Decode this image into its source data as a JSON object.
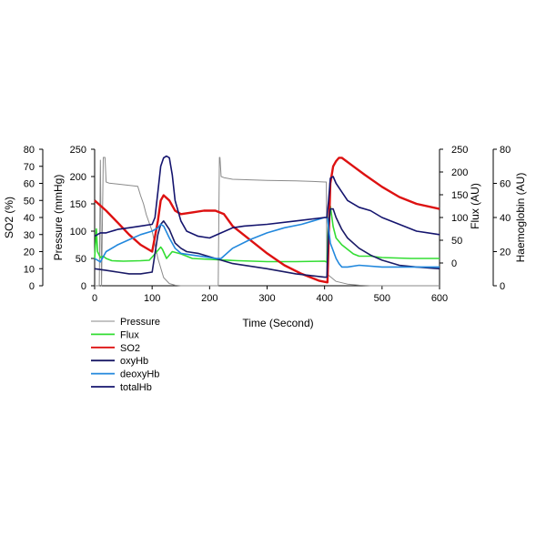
{
  "chart_data": {
    "type": "line",
    "xlabel": "Time (Second)",
    "xlim": [
      0,
      600
    ],
    "x_ticks": [
      0,
      100,
      200,
      300,
      400,
      500,
      600
    ],
    "axes": {
      "so2": {
        "label": "SO2 (%)",
        "range": [
          0,
          80
        ],
        "ticks": [
          0,
          10,
          20,
          30,
          40,
          50,
          60,
          70,
          80
        ]
      },
      "pressure": {
        "label": "Pressure (mmHg)",
        "range": [
          0,
          250
        ],
        "ticks": [
          0,
          50,
          100,
          150,
          200,
          250
        ]
      },
      "flux": {
        "label": "Flux (AU)",
        "range": [
          -50,
          250
        ],
        "ticks": [
          0,
          50,
          100,
          150,
          200,
          250
        ]
      },
      "haemoglobin": {
        "label": "Haemoglobin (AU)",
        "range": [
          0,
          80
        ],
        "ticks": [
          0,
          20,
          40,
          60,
          80
        ]
      }
    },
    "legend_position": "bottom-left",
    "series": [
      {
        "name": "Pressure",
        "axis": "pressure",
        "color": "#8a8a8a",
        "x": [
          0,
          8,
          10,
          12,
          15,
          18,
          20,
          25,
          75,
          80,
          85,
          90,
          100,
          110,
          120,
          130,
          140,
          150,
          200,
          215,
          217,
          218,
          220,
          225,
          240,
          300,
          350,
          380,
          400,
          403,
          404,
          406,
          420,
          440,
          460,
          480,
          500,
          600
        ],
        "values": [
          0,
          0,
          230,
          0,
          235,
          235,
          190,
          188,
          182,
          165,
          150,
          130,
          100,
          50,
          15,
          4,
          1,
          0,
          0,
          0,
          235,
          235,
          200,
          198,
          195,
          193,
          192,
          191,
          190,
          190,
          30,
          20,
          8,
          3,
          1,
          0,
          0,
          0
        ]
      },
      {
        "name": "Flux",
        "axis": "flux",
        "color": "#33dd33",
        "x": [
          0,
          3,
          5,
          7,
          10,
          15,
          20,
          30,
          50,
          80,
          95,
          105,
          115,
          118,
          125,
          135,
          150,
          170,
          200,
          250,
          300,
          350,
          400,
          404,
          407,
          410,
          415,
          420,
          430,
          440,
          450,
          460,
          480,
          500,
          550,
          600
        ],
        "values": [
          10,
          75,
          25,
          20,
          12,
          15,
          10,
          5,
          4,
          5,
          6,
          20,
          35,
          30,
          10,
          25,
          20,
          10,
          8,
          5,
          3,
          3,
          4,
          2,
          100,
          125,
          80,
          55,
          40,
          30,
          20,
          15,
          15,
          12,
          10,
          10
        ]
      },
      {
        "name": "SO2",
        "axis": "so2",
        "color": "#dd1111",
        "x": [
          0,
          20,
          40,
          60,
          80,
          100,
          110,
          115,
          120,
          130,
          140,
          150,
          170,
          190,
          210,
          225,
          240,
          270,
          300,
          330,
          360,
          390,
          405,
          410,
          415,
          420,
          425,
          430,
          450,
          470,
          500,
          530,
          560,
          600
        ],
        "values": [
          50,
          44,
          37,
          30,
          24,
          20,
          38,
          50,
          53,
          50,
          44,
          42,
          43,
          44,
          44,
          42,
          35,
          27,
          19,
          12,
          7,
          3,
          2,
          60,
          70,
          73,
          75,
          75,
          70,
          65,
          58,
          52,
          48,
          45
        ]
      },
      {
        "name": "oxyHb",
        "axis": "haemoglobin",
        "color": "#1a1a66",
        "x": [
          0,
          20,
          40,
          60,
          80,
          100,
          110,
          115,
          120,
          130,
          140,
          150,
          160,
          180,
          200,
          220,
          240,
          300,
          350,
          400,
          404,
          407,
          410,
          415,
          420,
          430,
          440,
          460,
          480,
          500,
          530,
          560,
          600
        ],
        "values": [
          10,
          9,
          8,
          7,
          7,
          8,
          30,
          36,
          38,
          33,
          25,
          22,
          20,
          19,
          17,
          15,
          13,
          10,
          7,
          5,
          5,
          35,
          45,
          45,
          40,
          33,
          28,
          22,
          18,
          15,
          12,
          11,
          10
        ]
      },
      {
        "name": "deoxyHb",
        "axis": "haemoglobin",
        "color": "#2288dd",
        "x": [
          0,
          10,
          20,
          40,
          60,
          80,
          100,
          110,
          115,
          120,
          130,
          140,
          150,
          170,
          190,
          210,
          220,
          240,
          270,
          300,
          330,
          360,
          380,
          400,
          405,
          410,
          420,
          425,
          430,
          440,
          460,
          500,
          560,
          600
        ],
        "values": [
          16,
          14,
          20,
          24,
          27,
          30,
          32,
          34,
          36,
          35,
          28,
          22,
          19,
          18,
          17,
          16,
          16,
          22,
          27,
          31,
          34,
          36,
          38,
          40,
          40,
          25,
          16,
          13,
          11,
          11,
          12,
          11,
          11,
          11
        ]
      },
      {
        "name": "totalHb",
        "axis": "haemoglobin",
        "color": "#14146e",
        "x": [
          0,
          10,
          20,
          40,
          60,
          80,
          100,
          105,
          110,
          115,
          120,
          125,
          130,
          135,
          140,
          150,
          160,
          180,
          200,
          220,
          240,
          260,
          300,
          350,
          400,
          404,
          407,
          410,
          415,
          420,
          430,
          440,
          460,
          480,
          500,
          530,
          560,
          600
        ],
        "values": [
          29,
          31,
          31,
          33,
          34,
          35,
          36,
          40,
          55,
          70,
          75,
          76,
          75,
          65,
          50,
          38,
          32,
          29,
          28,
          31,
          34,
          35,
          36,
          38,
          40,
          40,
          50,
          63,
          64,
          60,
          55,
          50,
          46,
          44,
          40,
          36,
          32,
          30
        ]
      }
    ]
  }
}
